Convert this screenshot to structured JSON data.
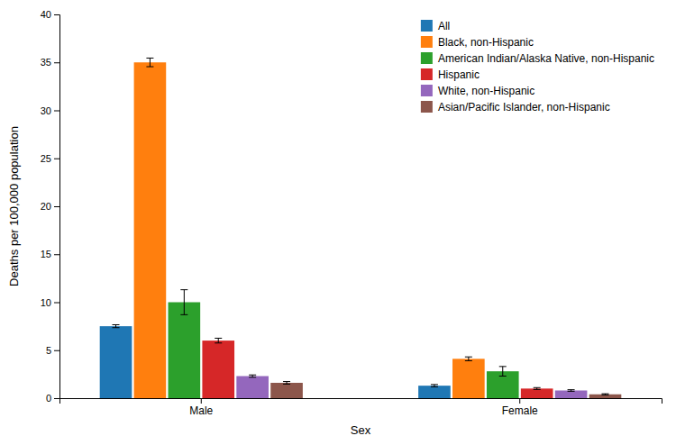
{
  "chart_data": {
    "type": "bar",
    "xlabel": "Sex",
    "ylabel": "Deaths per 100,000 population",
    "categories": [
      "Male",
      "Female"
    ],
    "series": [
      {
        "name": "All",
        "values": [
          7.5,
          1.3
        ],
        "errors": [
          0.15,
          0.12
        ]
      },
      {
        "name": "Black, non-Hispanic",
        "values": [
          35.0,
          4.1
        ],
        "errors": [
          0.45,
          0.2
        ]
      },
      {
        "name": "American Indian/Alaska Native, non-Hispanic",
        "values": [
          10.0,
          2.8
        ],
        "errors": [
          1.3,
          0.5
        ]
      },
      {
        "name": "Hispanic",
        "values": [
          6.0,
          1.0
        ],
        "errors": [
          0.25,
          0.1
        ]
      },
      {
        "name": "White, non-Hispanic",
        "values": [
          2.3,
          0.8
        ],
        "errors": [
          0.12,
          0.08
        ]
      },
      {
        "name": "Asian/Pacific Islander, non-Hispanic",
        "values": [
          1.6,
          0.4
        ],
        "errors": [
          0.13,
          0.06
        ]
      }
    ],
    "ylim": [
      0,
      40
    ],
    "yticks": [
      0,
      5,
      10,
      15,
      20,
      25,
      30,
      35,
      40
    ],
    "grid": false,
    "legend": "upper right"
  }
}
